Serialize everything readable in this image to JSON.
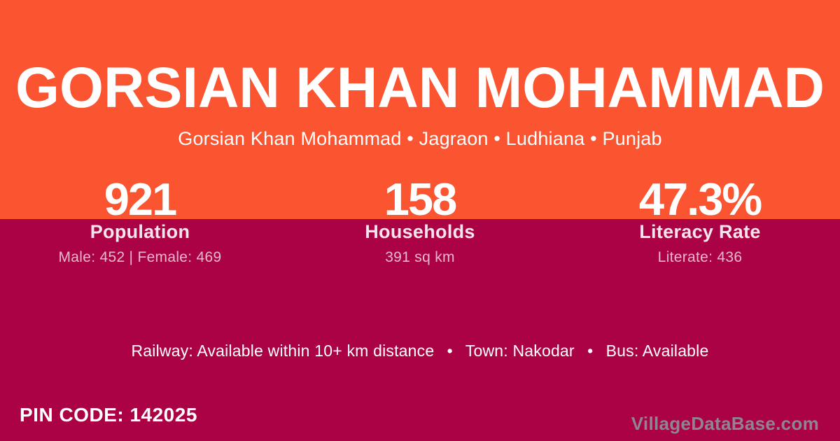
{
  "theme": {
    "orange": "#FB5430",
    "crimson": "#AB0245",
    "text_white": "#FFFFFF",
    "label_color": "#F8E4EC",
    "detail_color": "#F1B2CC",
    "watermark_color": "#8D8690"
  },
  "header": {
    "title": "GORSIAN KHAN MOHAMMAD",
    "breadcrumb": "Gorsian Khan Mohammad • Jagraon • Ludhiana • Punjab"
  },
  "stats": [
    {
      "value": "921",
      "label": "Population",
      "detail": "Male: 452 | Female: 469"
    },
    {
      "value": "158",
      "label": "Households",
      "detail": "391 sq km"
    },
    {
      "value": "47.3%",
      "label": "Literacy Rate",
      "detail": "Literate: 436"
    }
  ],
  "info": {
    "transport_line": "Railway: Available within 10+ km distance  •  Town: Nakodar  •  Bus: Available"
  },
  "footer": {
    "pincode": "PIN CODE: 142025",
    "watermark": "VillageDataBase.com"
  }
}
